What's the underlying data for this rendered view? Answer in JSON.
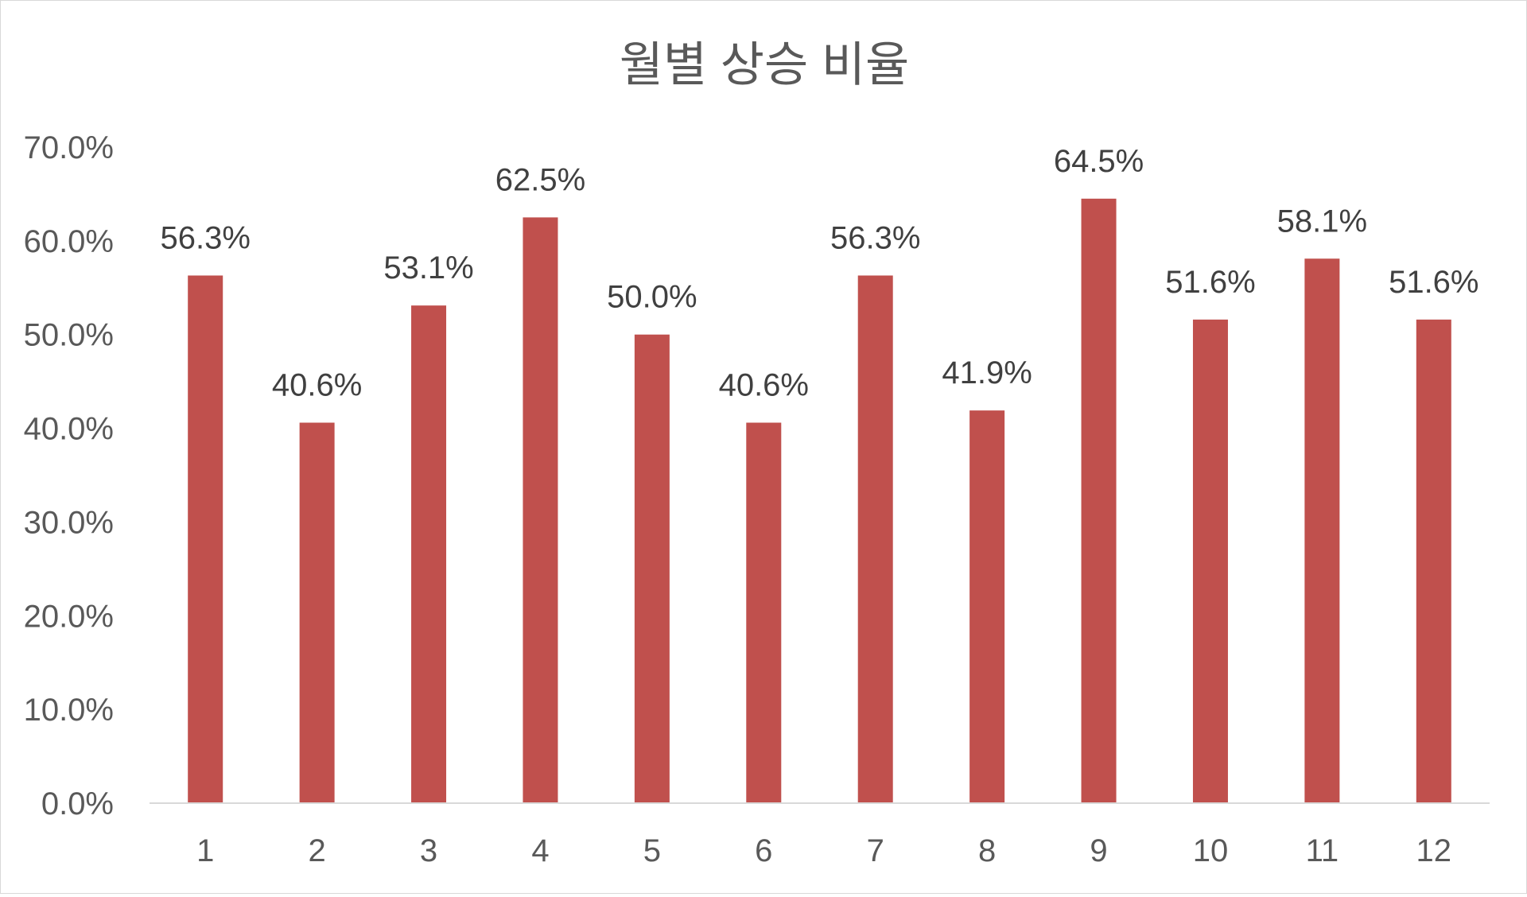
{
  "chart_data": {
    "type": "bar",
    "title": "월별 상승 비율",
    "xlabel": "",
    "ylabel": "",
    "categories": [
      "1",
      "2",
      "3",
      "4",
      "5",
      "6",
      "7",
      "8",
      "9",
      "10",
      "11",
      "12"
    ],
    "values": [
      56.3,
      40.6,
      53.1,
      62.5,
      50.0,
      40.6,
      56.3,
      41.9,
      64.5,
      51.6,
      58.1,
      51.6
    ],
    "data_labels": [
      "56.3%",
      "40.6%",
      "53.1%",
      "62.5%",
      "50.0%",
      "40.6%",
      "56.3%",
      "41.9%",
      "64.5%",
      "51.6%",
      "58.1%",
      "51.6%"
    ],
    "ylim": [
      0,
      70
    ],
    "yticks": [
      0,
      10,
      20,
      30,
      40,
      50,
      60,
      70
    ],
    "ytick_labels": [
      "0.0%",
      "10.0%",
      "20.0%",
      "30.0%",
      "40.0%",
      "50.0%",
      "60.0%",
      "70.0%"
    ],
    "grid": false,
    "legend": "none",
    "colors": {
      "bar": "#c0504d",
      "axis": "#d9d9d9",
      "text": "#595959"
    }
  }
}
